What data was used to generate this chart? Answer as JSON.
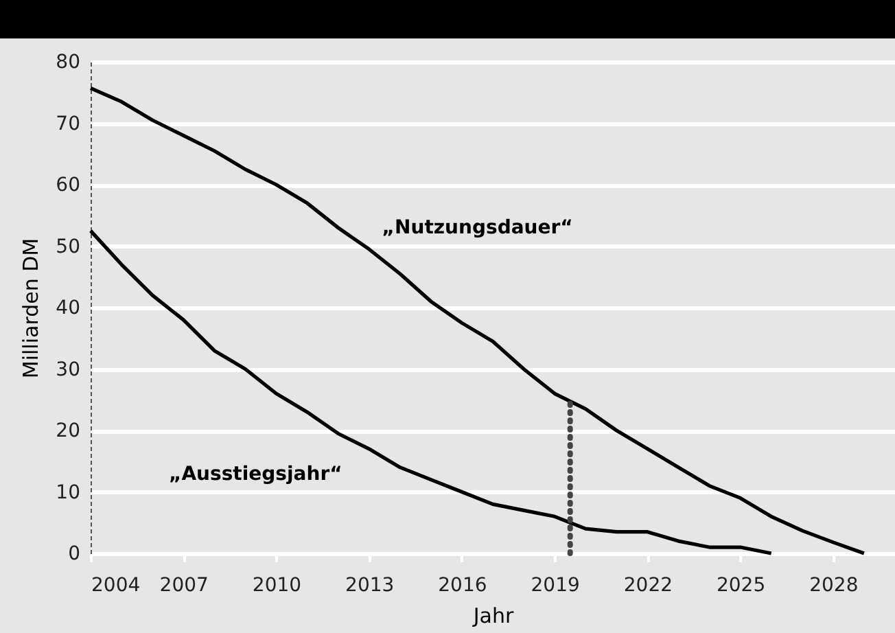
{
  "chart_data": {
    "type": "line",
    "xlabel": "Jahr",
    "ylabel": "Milliarden DM",
    "x": [
      2004,
      2005,
      2006,
      2007,
      2008,
      2009,
      2010,
      2011,
      2012,
      2013,
      2014,
      2015,
      2016,
      2017,
      2018,
      2019,
      2020,
      2021,
      2022,
      2023,
      2024,
      2025,
      2026,
      2027,
      2028,
      2029
    ],
    "series": [
      {
        "name": "„Nutzungsdauer“",
        "color": "#000000",
        "values": [
          75.7,
          73.5,
          70.5,
          68,
          65.5,
          62.5,
          60,
          57,
          53,
          49.5,
          45.5,
          41,
          37.5,
          34.5,
          30,
          26,
          23.5,
          20,
          17,
          14,
          11,
          9,
          6,
          3.7,
          1.8,
          0
        ]
      },
      {
        "name": "„Ausstiegsjahr“",
        "color": "#000000",
        "values": [
          52.5,
          47,
          42,
          38,
          33,
          30,
          26,
          23,
          19.5,
          17,
          14,
          12,
          10,
          8,
          7,
          6,
          4,
          3.5,
          3.5,
          2,
          1,
          1,
          0,
          null,
          null,
          null
        ]
      }
    ],
    "xlim": [
      2004,
      2030
    ],
    "xticks": [
      2004,
      2007,
      2010,
      2013,
      2016,
      2019,
      2022,
      2025,
      2028
    ],
    "ylim": [
      0,
      80
    ],
    "yticks": [
      0,
      10,
      20,
      30,
      40,
      50,
      60,
      70,
      80
    ],
    "ref_lines": [
      {
        "axis": "x",
        "value": 2019.5,
        "color": "#444444",
        "line_style": "dotted"
      }
    ],
    "grid": "y",
    "marker": "none",
    "line_style": "solid"
  }
}
